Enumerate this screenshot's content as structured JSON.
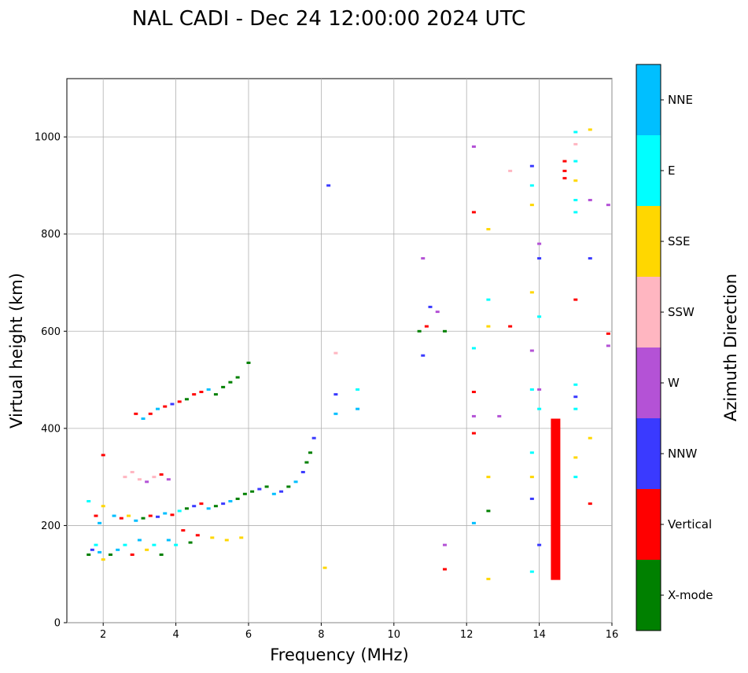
{
  "chart_data": {
    "type": "scatter",
    "title": "NAL CADI - Dec 24 12:00:00 2024 UTC",
    "xlabel": "Frequency (MHz)",
    "ylabel": "Virtual height (km)",
    "xlim": [
      1,
      16
    ],
    "ylim": [
      0,
      1120
    ],
    "xticks": [
      "2",
      "4",
      "6",
      "8",
      "10",
      "12",
      "14",
      "16"
    ],
    "yticks": [
      "0",
      "200",
      "400",
      "600",
      "800",
      "1000"
    ],
    "grid": true,
    "colorbar": {
      "label": "Azimuth Direction",
      "categories": [
        {
          "name": "X-mode",
          "color": "#008000"
        },
        {
          "name": "Vertical",
          "color": "#ff0000"
        },
        {
          "name": "NNW",
          "color": "#3a3aff"
        },
        {
          "name": "W",
          "color": "#b452d6"
        },
        {
          "name": "SSW",
          "color": "#ffb6c1"
        },
        {
          "name": "SSE",
          "color": "#ffd700"
        },
        {
          "name": "E",
          "color": "#00ffff"
        },
        {
          "name": "NNE",
          "color": "#00bfff"
        }
      ]
    },
    "points": [
      [
        1.6,
        140,
        0
      ],
      [
        1.7,
        150,
        2
      ],
      [
        1.8,
        160,
        6
      ],
      [
        1.9,
        145,
        7
      ],
      [
        2.0,
        130,
        5
      ],
      [
        1.6,
        250,
        6
      ],
      [
        1.8,
        220,
        1
      ],
      [
        1.9,
        205,
        7
      ],
      [
        2.0,
        240,
        5
      ],
      [
        2.0,
        345,
        1
      ],
      [
        2.2,
        140,
        0
      ],
      [
        2.4,
        150,
        7
      ],
      [
        2.6,
        160,
        6
      ],
      [
        2.8,
        140,
        1
      ],
      [
        3.0,
        170,
        7
      ],
      [
        3.2,
        150,
        5
      ],
      [
        3.4,
        160,
        6
      ],
      [
        3.6,
        140,
        0
      ],
      [
        3.8,
        170,
        7
      ],
      [
        4.0,
        160,
        6
      ],
      [
        2.3,
        220,
        7
      ],
      [
        2.5,
        215,
        1
      ],
      [
        2.7,
        220,
        5
      ],
      [
        2.9,
        210,
        7
      ],
      [
        3.1,
        215,
        0
      ],
      [
        3.3,
        220,
        1
      ],
      [
        3.5,
        218,
        2
      ],
      [
        3.7,
        225,
        7
      ],
      [
        3.9,
        222,
        1
      ],
      [
        4.1,
        230,
        6
      ],
      [
        4.3,
        235,
        0
      ],
      [
        4.5,
        240,
        2
      ],
      [
        4.7,
        245,
        1
      ],
      [
        4.9,
        235,
        7
      ],
      [
        5.1,
        240,
        0
      ],
      [
        5.3,
        245,
        2
      ],
      [
        5.5,
        250,
        7
      ],
      [
        5.7,
        255,
        0
      ],
      [
        5.9,
        265,
        0
      ],
      [
        6.1,
        270,
        0
      ],
      [
        6.3,
        275,
        2
      ],
      [
        6.5,
        280,
        0
      ],
      [
        6.7,
        265,
        7
      ],
      [
        6.9,
        270,
        2
      ],
      [
        7.1,
        280,
        0
      ],
      [
        7.3,
        290,
        7
      ],
      [
        7.5,
        310,
        2
      ],
      [
        7.6,
        330,
        0
      ],
      [
        7.7,
        350,
        0
      ],
      [
        7.8,
        380,
        2
      ],
      [
        2.6,
        300,
        4
      ],
      [
        2.8,
        310,
        4
      ],
      [
        3.0,
        295,
        4
      ],
      [
        3.2,
        290,
        3
      ],
      [
        3.4,
        300,
        4
      ],
      [
        3.6,
        305,
        1
      ],
      [
        3.8,
        295,
        3
      ],
      [
        2.9,
        430,
        1
      ],
      [
        3.1,
        420,
        7
      ],
      [
        3.3,
        430,
        1
      ],
      [
        3.5,
        440,
        7
      ],
      [
        3.7,
        445,
        1
      ],
      [
        3.9,
        450,
        2
      ],
      [
        4.1,
        455,
        1
      ],
      [
        4.3,
        460,
        0
      ],
      [
        4.5,
        470,
        1
      ],
      [
        4.7,
        475,
        1
      ],
      [
        4.9,
        480,
        7
      ],
      [
        5.1,
        470,
        0
      ],
      [
        5.3,
        485,
        0
      ],
      [
        5.5,
        495,
        0
      ],
      [
        5.7,
        505,
        0
      ],
      [
        6.0,
        535,
        0
      ],
      [
        4.2,
        190,
        1
      ],
      [
        4.6,
        180,
        1
      ],
      [
        5.0,
        175,
        5
      ],
      [
        5.4,
        170,
        5
      ],
      [
        5.8,
        175,
        5
      ],
      [
        4.4,
        165,
        0
      ],
      [
        8.4,
        430,
        7
      ],
      [
        8.4,
        470,
        2
      ],
      [
        9.0,
        440,
        7
      ],
      [
        9.0,
        480,
        6
      ],
      [
        8.2,
        900,
        2
      ],
      [
        8.4,
        555,
        4
      ],
      [
        8.1,
        113,
        5
      ],
      [
        10.7,
        600,
        0
      ],
      [
        10.9,
        610,
        1
      ],
      [
        11.0,
        650,
        2
      ],
      [
        11.2,
        640,
        3
      ],
      [
        11.4,
        600,
        0
      ],
      [
        10.8,
        550,
        2
      ],
      [
        10.8,
        750,
        3
      ],
      [
        11.4,
        110,
        1
      ],
      [
        11.4,
        160,
        3
      ],
      [
        12.2,
        980,
        3
      ],
      [
        12.2,
        845,
        1
      ],
      [
        12.2,
        565,
        6
      ],
      [
        12.2,
        475,
        1
      ],
      [
        12.2,
        425,
        3
      ],
      [
        12.2,
        390,
        1
      ],
      [
        12.2,
        205,
        7
      ],
      [
        12.6,
        810,
        5
      ],
      [
        12.6,
        665,
        6
      ],
      [
        12.6,
        610,
        5
      ],
      [
        12.6,
        300,
        5
      ],
      [
        12.6,
        230,
        0
      ],
      [
        12.6,
        90,
        5
      ],
      [
        12.9,
        425,
        3
      ],
      [
        13.2,
        610,
        1
      ],
      [
        13.2,
        930,
        4
      ],
      [
        13.8,
        940,
        2
      ],
      [
        13.8,
        900,
        6
      ],
      [
        13.8,
        860,
        5
      ],
      [
        13.8,
        680,
        5
      ],
      [
        13.8,
        560,
        3
      ],
      [
        13.8,
        480,
        6
      ],
      [
        13.8,
        350,
        6
      ],
      [
        13.8,
        300,
        5
      ],
      [
        13.8,
        255,
        2
      ],
      [
        13.8,
        105,
        6
      ],
      [
        14.0,
        780,
        3
      ],
      [
        14.0,
        750,
        2
      ],
      [
        14.0,
        630,
        6
      ],
      [
        14.0,
        480,
        3
      ],
      [
        14.0,
        440,
        6
      ],
      [
        14.0,
        160,
        2
      ],
      [
        14.7,
        930,
        1
      ],
      [
        14.7,
        950,
        1
      ],
      [
        14.7,
        915,
        1
      ],
      [
        15.0,
        1010,
        6
      ],
      [
        15.0,
        985,
        4
      ],
      [
        15.0,
        950,
        6
      ],
      [
        15.0,
        910,
        5
      ],
      [
        15.0,
        870,
        6
      ],
      [
        15.0,
        845,
        6
      ],
      [
        15.0,
        665,
        1
      ],
      [
        15.0,
        490,
        6
      ],
      [
        15.0,
        465,
        2
      ],
      [
        15.0,
        440,
        6
      ],
      [
        15.0,
        340,
        5
      ],
      [
        15.0,
        300,
        6
      ],
      [
        15.4,
        1015,
        5
      ],
      [
        15.4,
        870,
        3
      ],
      [
        15.4,
        750,
        2
      ],
      [
        15.4,
        380,
        5
      ],
      [
        15.4,
        245,
        1
      ],
      [
        15.9,
        860,
        3
      ],
      [
        15.9,
        595,
        1
      ],
      [
        15.9,
        570,
        3
      ]
    ],
    "bars": [
      {
        "x": 14.45,
        "from": 88,
        "to": 420,
        "category": 1
      }
    ]
  }
}
